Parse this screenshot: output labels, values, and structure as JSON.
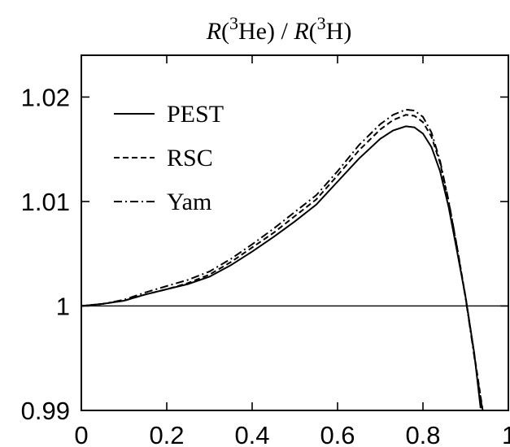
{
  "chart_data": {
    "type": "line",
    "title": {
      "parts": [
        {
          "text": "R",
          "italic": true
        },
        {
          "text": "("
        },
        {
          "text": "3",
          "sup": true
        },
        {
          "text": "He) / "
        },
        {
          "text": "R",
          "italic": true
        },
        {
          "text": "("
        },
        {
          "text": "3",
          "sup": true
        },
        {
          "text": "H)"
        }
      ]
    },
    "xlabel": "",
    "ylabel": "",
    "xlim": [
      0,
      1
    ],
    "ylim": [
      0.99,
      1.024
    ],
    "xticks": [
      0,
      0.2,
      0.4,
      0.6,
      0.8,
      1
    ],
    "xtick_labels": [
      "0",
      "0.2",
      "0.4",
      "0.6",
      "0.8",
      "1"
    ],
    "yticks": [
      0.99,
      1.0,
      1.01,
      1.02
    ],
    "ytick_labels": [
      "0.99",
      "1",
      "1.01",
      "1.02"
    ],
    "grid": false,
    "legend_position": "top-left",
    "reference_line": {
      "y": 1.0
    },
    "series": [
      {
        "name": "PEST",
        "dash": "solid",
        "x": [
          0,
          0.05,
          0.1,
          0.15,
          0.2,
          0.25,
          0.3,
          0.35,
          0.4,
          0.45,
          0.5,
          0.55,
          0.6,
          0.65,
          0.7,
          0.73,
          0.76,
          0.78,
          0.8,
          0.82,
          0.84,
          0.86,
          0.88,
          0.9,
          0.92,
          0.935
        ],
        "y": [
          1.0,
          1.0002,
          1.0005,
          1.0011,
          1.0016,
          1.0021,
          1.0028,
          1.0039,
          1.0052,
          1.0066,
          1.0081,
          1.0097,
          1.0119,
          1.0141,
          1.016,
          1.0168,
          1.0172,
          1.0171,
          1.0165,
          1.0152,
          1.0129,
          1.0095,
          1.0052,
          1.0008,
          0.9955,
          0.9902
        ]
      },
      {
        "name": "RSC",
        "dash": "dashed",
        "x": [
          0,
          0.05,
          0.1,
          0.15,
          0.2,
          0.25,
          0.3,
          0.35,
          0.4,
          0.45,
          0.5,
          0.55,
          0.6,
          0.65,
          0.7,
          0.73,
          0.76,
          0.78,
          0.8,
          0.82,
          0.84,
          0.86,
          0.88,
          0.9,
          0.92,
          0.94
        ],
        "y": [
          1.0,
          1.0002,
          1.0005,
          1.0011,
          1.0016,
          1.0022,
          1.003,
          1.0042,
          1.0056,
          1.007,
          1.0086,
          1.0102,
          1.0125,
          1.0149,
          1.0169,
          1.0178,
          1.0183,
          1.0182,
          1.0176,
          1.0162,
          1.0137,
          1.01,
          1.0056,
          1.0008,
          0.9954,
          0.99
        ]
      },
      {
        "name": "Yam",
        "dash": "dashdot",
        "x": [
          0,
          0.05,
          0.1,
          0.15,
          0.2,
          0.25,
          0.3,
          0.35,
          0.4,
          0.45,
          0.5,
          0.55,
          0.6,
          0.65,
          0.7,
          0.73,
          0.76,
          0.78,
          0.8,
          0.82,
          0.84,
          0.86,
          0.88,
          0.9,
          0.92,
          0.94
        ],
        "y": [
          1.0,
          1.0002,
          1.0006,
          1.0013,
          1.0019,
          1.0025,
          1.0033,
          1.0045,
          1.0059,
          1.0074,
          1.009,
          1.0106,
          1.0129,
          1.0154,
          1.0174,
          1.0183,
          1.0188,
          1.0187,
          1.0181,
          1.0166,
          1.0139,
          1.0101,
          1.0056,
          1.0007,
          0.9952,
          0.9898
        ]
      }
    ]
  }
}
